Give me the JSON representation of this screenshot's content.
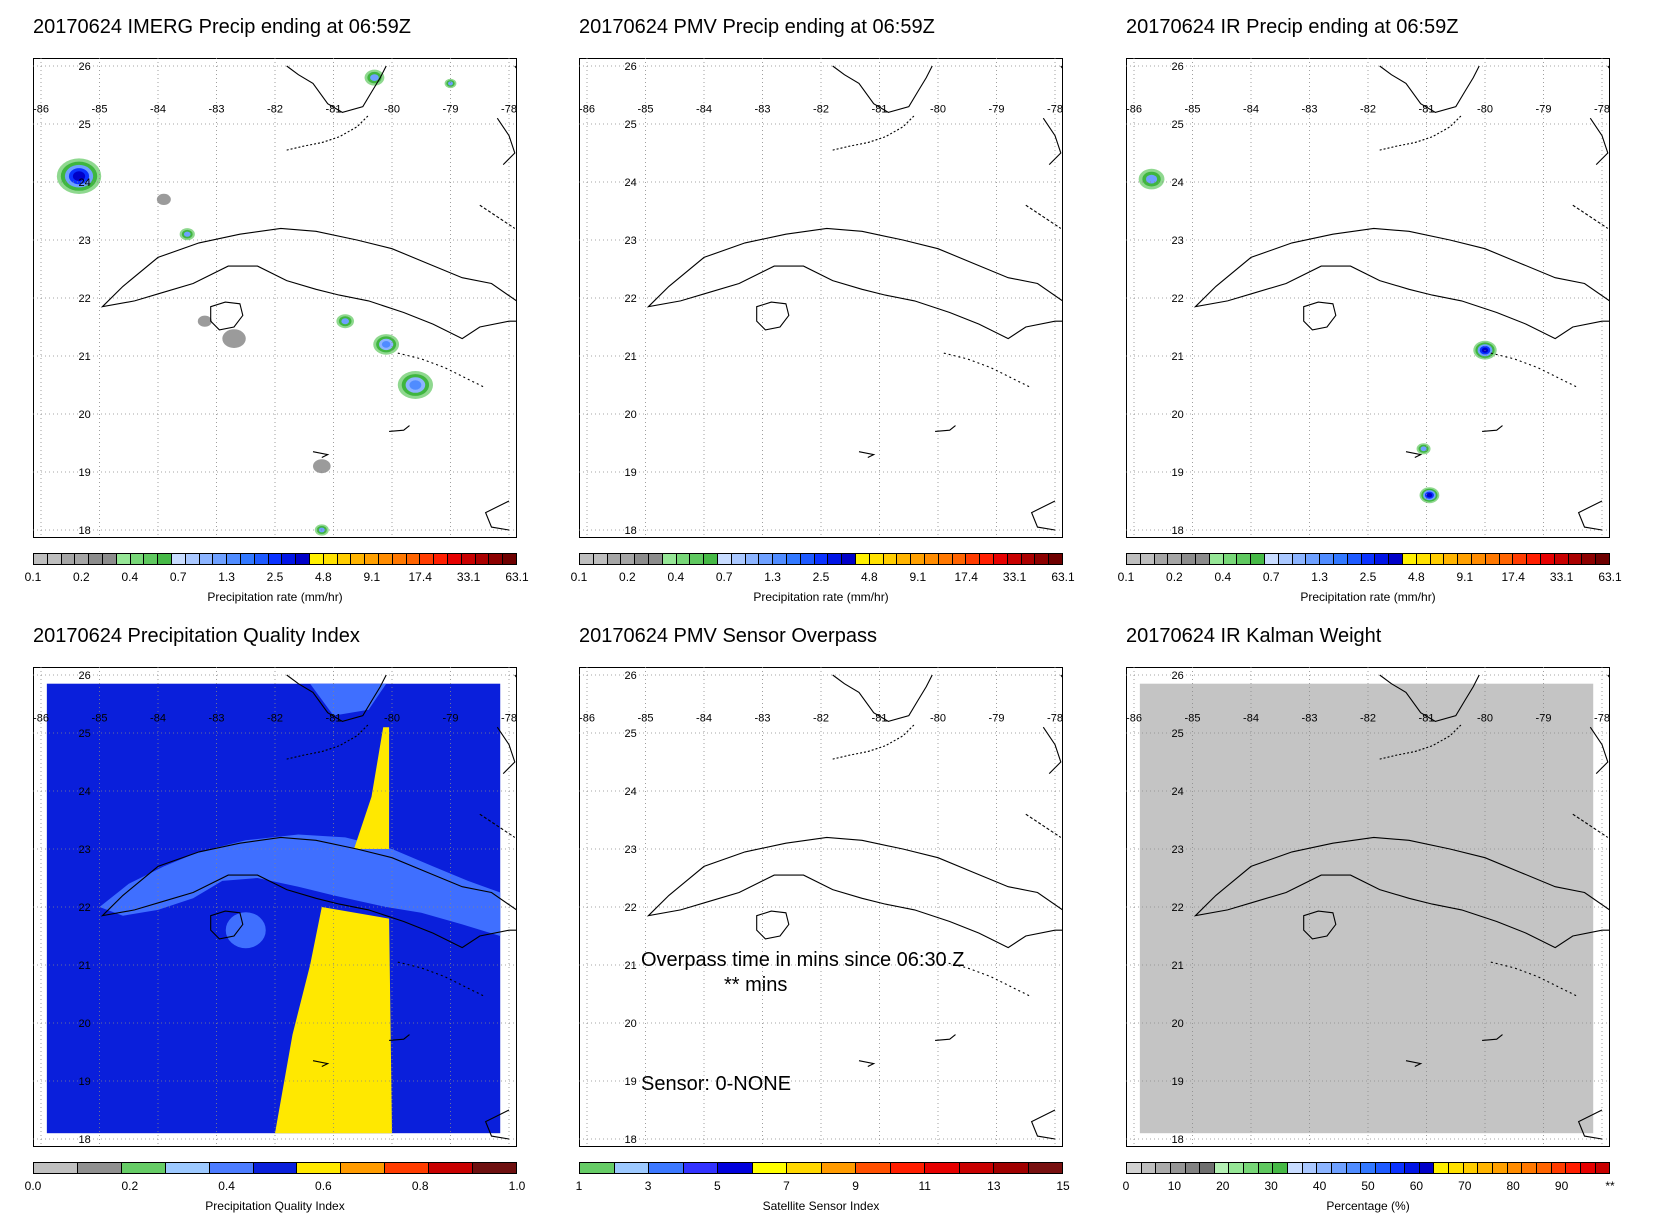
{
  "colors": {
    "precip": [
      "#bebebe",
      "#bebebe",
      "#a5a5a5",
      "#a5a5a5",
      "#8c8c8c",
      "#8c8c8c",
      "#96e696",
      "#78d778",
      "#5fc85f",
      "#46b946",
      "#c8dcff",
      "#aac8ff",
      "#8cb4ff",
      "#6ea0ff",
      "#508cff",
      "#3278ff",
      "#1e5aff",
      "#0a32ff",
      "#0014e6",
      "#0000c8",
      "#fff000",
      "#ffe100",
      "#ffcd00",
      "#ffb400",
      "#ffa000",
      "#ff8c00",
      "#ff7800",
      "#ff6400",
      "#ff3c00",
      "#ff1e00",
      "#e60000",
      "#c80000",
      "#aa0000",
      "#8c0000",
      "#6e0000"
    ],
    "quality": [
      "#c0c0c0",
      "#909090",
      "#66cc66",
      "#9dc9ff",
      "#4c7cff",
      "#0a1fdb",
      "#ffe800",
      "#ff9b00",
      "#ff3c00",
      "#c80000",
      "#6e1010"
    ],
    "sensor": [
      "#66cc66",
      "#9dc9ff",
      "#3c78ff",
      "#3232ff",
      "#0000dc",
      "#ffff00",
      "#ffd700",
      "#ff9b00",
      "#ff5000",
      "#ff1e00",
      "#e60000",
      "#c80000",
      "#a00000",
      "#781010"
    ],
    "kalman": [
      "#d2d2d2",
      "#bebebe",
      "#aaaaaa",
      "#969696",
      "#828282",
      "#6e6e6e",
      "#b4f0b4",
      "#96e696",
      "#78d778",
      "#5fc85f",
      "#46b946",
      "#c8dcff",
      "#aac8ff",
      "#8cb4ff",
      "#6ea0ff",
      "#508cff",
      "#3278ff",
      "#1e5aff",
      "#0a32ff",
      "#0014e6",
      "#0000c8",
      "#fff000",
      "#ffe100",
      "#ffcd00",
      "#ffb400",
      "#ffa000",
      "#ff8c00",
      "#ff7800",
      "#ff6400",
      "#ff3c00",
      "#ff1e00",
      "#e60000",
      "#c80000"
    ],
    "pqi_dark_blue": "#0a1fdb",
    "pqi_light_blue": "#3f6fff",
    "pqi_yellow": "#ffe800",
    "kalman_gray": "#c4c4c4"
  },
  "axes": {
    "lon_labels": [
      "-86",
      "-85",
      "-84",
      "-83",
      "-82",
      "-81",
      "-80",
      "-79",
      "-78"
    ],
    "lat_labels": [
      "26",
      "25",
      "24",
      "23",
      "22",
      "21",
      "20",
      "19",
      "18"
    ],
    "lon_range": [
      -86,
      -78
    ],
    "lat_range": [
      18,
      26
    ]
  },
  "panels": [
    {
      "id": "imerg",
      "title": "20170624 IMERG Precip ending at 06:59Z",
      "colorbar": {
        "palette": "precip",
        "ticks": [
          "0.1",
          "0.2",
          "0.4",
          "0.7",
          "1.3",
          "2.5",
          "4.8",
          "9.1",
          "17.4",
          "33.1",
          "63.1"
        ],
        "label": "Precipitation rate (mm/hr)"
      },
      "cells": [
        {
          "lon": -85.35,
          "lat": 24.1,
          "r": 0.38,
          "level": "heavy"
        },
        {
          "lon": -83.9,
          "lat": 23.7,
          "r": 0.12,
          "level": "light"
        },
        {
          "lon": -83.5,
          "lat": 23.1,
          "r": 0.13,
          "level": "moderate"
        },
        {
          "lon": -82.7,
          "lat": 21.3,
          "r": 0.2,
          "level": "light"
        },
        {
          "lon": -83.2,
          "lat": 21.6,
          "r": 0.12,
          "level": "light"
        },
        {
          "lon": -80.8,
          "lat": 21.6,
          "r": 0.15,
          "level": "moderate"
        },
        {
          "lon": -80.1,
          "lat": 21.2,
          "r": 0.22,
          "level": "strong"
        },
        {
          "lon": -79.6,
          "lat": 20.5,
          "r": 0.3,
          "level": "strong"
        },
        {
          "lon": -80.3,
          "lat": 25.8,
          "r": 0.17,
          "level": "moderate"
        },
        {
          "lon": -79.0,
          "lat": 25.7,
          "r": 0.1,
          "level": "moderate"
        },
        {
          "lon": -81.2,
          "lat": 19.1,
          "r": 0.15,
          "level": "light"
        },
        {
          "lon": -81.2,
          "lat": 18.0,
          "r": 0.12,
          "level": "moderate"
        }
      ]
    },
    {
      "id": "pmv",
      "title": "20170624 PMV Precip ending at 06:59Z",
      "colorbar": {
        "palette": "precip",
        "ticks": [
          "0.1",
          "0.2",
          "0.4",
          "0.7",
          "1.3",
          "2.5",
          "4.8",
          "9.1",
          "17.4",
          "33.1",
          "63.1"
        ],
        "label": "Precipitation rate (mm/hr)"
      },
      "cells": []
    },
    {
      "id": "ir",
      "title": "20170624 IR Precip ending at 06:59Z",
      "colorbar": {
        "palette": "precip",
        "ticks": [
          "0.1",
          "0.2",
          "0.4",
          "0.7",
          "1.3",
          "2.5",
          "4.8",
          "9.1",
          "17.4",
          "33.1",
          "63.1"
        ],
        "label": "Precipitation rate (mm/hr)"
      },
      "cells": [
        {
          "lon": -85.7,
          "lat": 24.05,
          "r": 0.22,
          "level": "moderate"
        },
        {
          "lon": -80.0,
          "lat": 21.1,
          "r": 0.2,
          "level": "heavy"
        },
        {
          "lon": -81.05,
          "lat": 19.4,
          "r": 0.12,
          "level": "moderate"
        },
        {
          "lon": -80.95,
          "lat": 18.6,
          "r": 0.17,
          "level": "heavy"
        }
      ]
    },
    {
      "id": "pqi",
      "title": "20170624 Precipitation Quality Index",
      "colorbar": {
        "palette": "quality",
        "ticks": [
          "0.0",
          "0.2",
          "0.4",
          "0.6",
          "0.8",
          "1.0"
        ],
        "label": "Precipitation Quality Index"
      }
    },
    {
      "id": "sensor",
      "title": "20170624 PMV Sensor Overpass",
      "colorbar": {
        "palette": "sensor",
        "ticks": [
          "1",
          "3",
          "5",
          "7",
          "9",
          "11",
          "13",
          "15"
        ],
        "label": "Satellite Sensor Index"
      },
      "overpass_line1": "Overpass time in mins since 06:30 Z",
      "overpass_line2": "** mins",
      "sensor_line": "Sensor:   0-NONE"
    },
    {
      "id": "kalman",
      "title": "20170624 IR Kalman Weight",
      "colorbar": {
        "palette": "kalman",
        "ticks": [
          "0",
          "10",
          "20",
          "30",
          "40",
          "50",
          "60",
          "70",
          "80",
          "90",
          "**"
        ],
        "label": "Percentage (%)"
      }
    }
  ],
  "icons": {
    "map_lines": "coastline-outline"
  }
}
